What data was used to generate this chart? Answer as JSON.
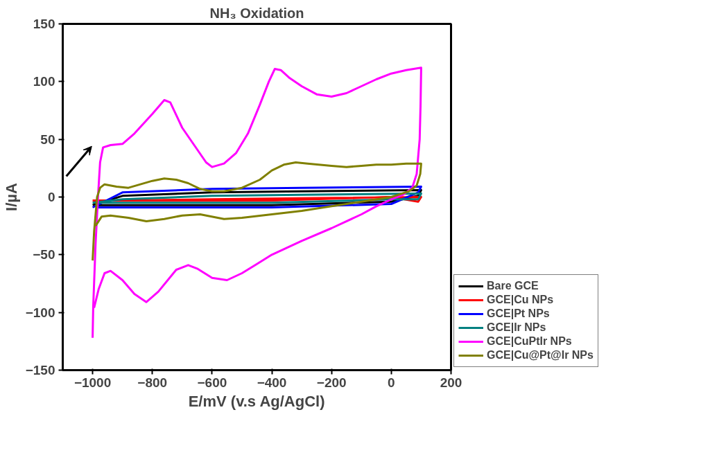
{
  "chart_data": {
    "type": "line",
    "title": "NH₃ Oxidation",
    "xlabel": "E/mV (v.s Ag/AgCl)",
    "ylabel": "I/µA",
    "xlim": [
      -1100,
      200
    ],
    "xticks": [
      -1000,
      -800,
      -600,
      -400,
      -200,
      0,
      200
    ],
    "ylim": [
      -150,
      150
    ],
    "yticks": [
      -150,
      -100,
      -50,
      0,
      50,
      100,
      150
    ],
    "grid": false,
    "legend": "bottom right",
    "marker": "none",
    "line_style": "solid",
    "series": [
      {
        "name": "Bare GCE",
        "color": "#000000",
        "x": [
          -1000,
          -900,
          -600,
          -300,
          100,
          90,
          0,
          -400,
          -990
        ],
        "values": [
          -7,
          1,
          4,
          5,
          6,
          1,
          -4,
          -7,
          -7
        ]
      },
      {
        "name": "GCE|Cu NPs",
        "color": "#ff0000",
        "x": [
          -1000,
          -900,
          -600,
          -300,
          100,
          90,
          0,
          -400,
          -990
        ],
        "values": [
          -3,
          -3,
          -2,
          -1,
          0,
          -4,
          0,
          -3,
          -3
        ]
      },
      {
        "name": "GCE|Pt NPs",
        "color": "#0000ff",
        "x": [
          -1000,
          -900,
          -600,
          -300,
          100,
          90,
          0,
          -400,
          -990
        ],
        "values": [
          -9,
          4,
          7,
          8,
          9,
          4,
          -6,
          -9,
          -9
        ]
      },
      {
        "name": "GCE|Ir NPs",
        "color": "#008080",
        "x": [
          -1000,
          -900,
          -600,
          -300,
          100,
          90,
          0,
          -400,
          -990
        ],
        "values": [
          -5,
          -2,
          1,
          2,
          3,
          -2,
          -2,
          -5,
          -5
        ]
      },
      {
        "name": "GCE|CuPtIr NPs",
        "color": "#ff00ff",
        "x": [
          -1000,
          -998,
          -990,
          -982,
          -975,
          -965,
          -940,
          -900,
          -860,
          -800,
          -760,
          -740,
          -700,
          -660,
          -620,
          -600,
          -560,
          -520,
          -480,
          -440,
          -410,
          -390,
          -370,
          -340,
          -300,
          -250,
          -200,
          -150,
          -100,
          -50,
          0,
          50,
          100,
          98,
          95,
          85,
          70,
          40,
          0,
          -50,
          -100,
          -200,
          -300,
          -400,
          -450,
          -500,
          -550,
          -600,
          -650,
          -680,
          -720,
          -780,
          -820,
          -860,
          -900,
          -940,
          -960,
          -980,
          -995
        ],
        "values": [
          -122,
          -95,
          -40,
          0,
          30,
          43,
          45,
          46,
          55,
          72,
          84,
          82,
          60,
          45,
          30,
          26,
          29,
          38,
          55,
          80,
          100,
          111,
          110,
          103,
          96,
          89,
          87,
          90,
          96,
          102,
          107,
          110,
          112,
          80,
          50,
          20,
          8,
          2,
          -2,
          -8,
          -15,
          -27,
          -38,
          -50,
          -58,
          -66,
          -72,
          -70,
          -62,
          -59,
          -63,
          -82,
          -91,
          -84,
          -72,
          -64,
          -66,
          -80,
          -96
        ]
      },
      {
        "name": "GCE|Cu@Pt@Ir NPs",
        "color": "#808000",
        "x": [
          -1000,
          -995,
          -985,
          -975,
          -960,
          -920,
          -880,
          -840,
          -800,
          -760,
          -720,
          -680,
          -640,
          -600,
          -560,
          -500,
          -440,
          -400,
          -360,
          -320,
          -280,
          -200,
          -150,
          -100,
          -50,
          0,
          50,
          100,
          97,
          85,
          60,
          0,
          -100,
          -200,
          -300,
          -400,
          -500,
          -560,
          -640,
          -700,
          -760,
          -820,
          -880,
          -940,
          -970,
          -990
        ],
        "values": [
          -55,
          -30,
          0,
          8,
          11,
          9,
          8,
          11,
          14,
          16,
          15,
          12,
          7,
          5,
          5,
          8,
          15,
          23,
          28,
          30,
          29,
          27,
          26,
          27,
          28,
          28,
          29,
          29,
          20,
          10,
          5,
          0,
          -4,
          -8,
          -12,
          -15,
          -18,
          -19,
          -15,
          -16,
          -19,
          -21,
          -18,
          -16,
          -17,
          -25
        ]
      }
    ]
  }
}
